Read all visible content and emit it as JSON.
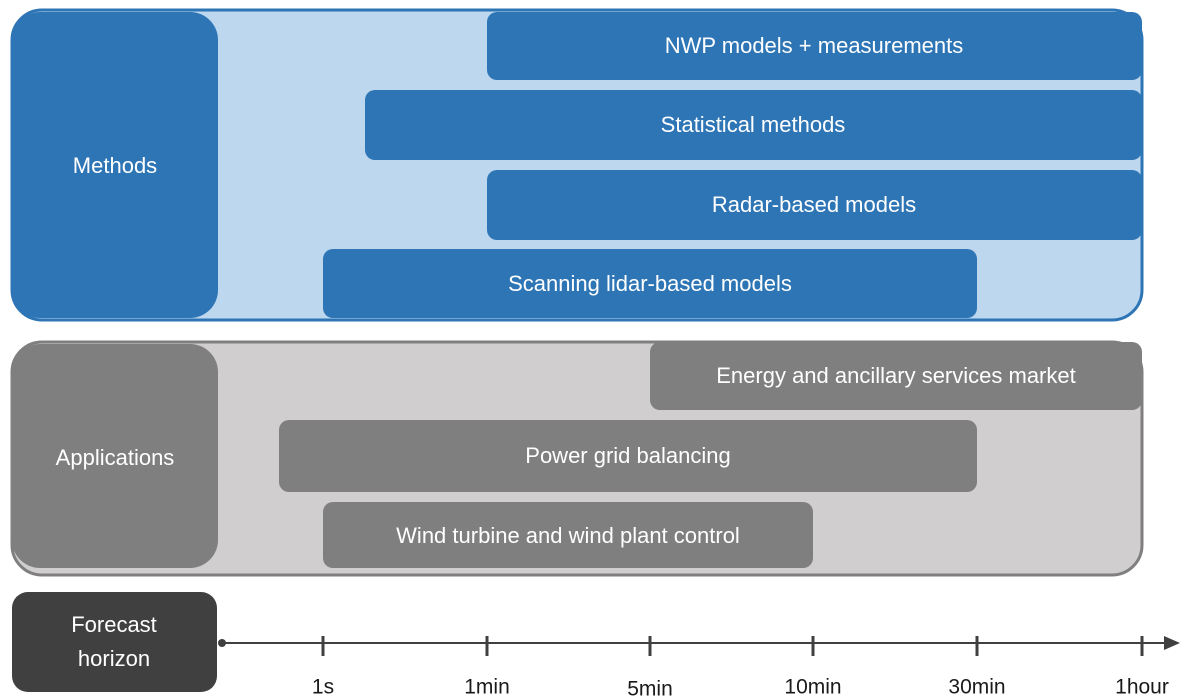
{
  "methods": {
    "label": "Methods",
    "items": [
      "NWP models + measurements",
      "Statistical methods",
      "Radar-based models",
      "Scanning lidar-based models"
    ]
  },
  "applications": {
    "label": "Applications",
    "items": [
      "Energy and ancillary services market",
      "Power grid balancing",
      "Wind turbine and wind plant control"
    ]
  },
  "forecast_horizon": {
    "lines": [
      "Forecast",
      "horizon"
    ],
    "ticks": [
      "1s",
      "1min",
      "5min",
      "10min",
      "30min",
      "1hour"
    ]
  }
}
